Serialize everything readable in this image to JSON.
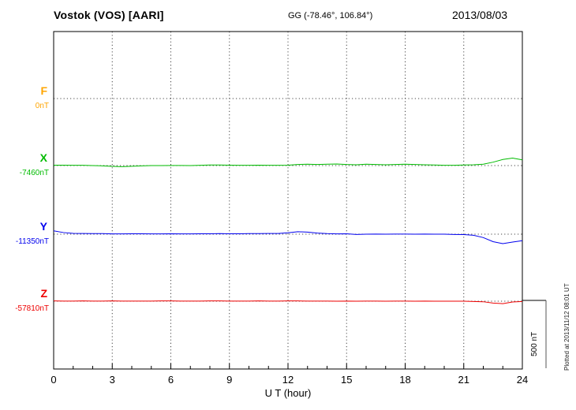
{
  "header": {
    "station_title": "Vostok (VOS)  [AARI]",
    "coords": "GG (-78.46°, 106.84°)",
    "date": "2013/08/03"
  },
  "axis": {
    "xlabel": "U T (hour)",
    "ticks": [
      0,
      3,
      6,
      9,
      12,
      15,
      18,
      21,
      24
    ]
  },
  "scale_bar": {
    "label": "500 nT",
    "value_nT": 500
  },
  "footer_note": "Plotted at 2013/11/12 08:01 UT",
  "chart_data": {
    "type": "line",
    "title": "Vostok (VOS) [AARI] magnetogram 2013/08/03",
    "xlabel": "U T (hour)",
    "xlim": [
      0,
      24
    ],
    "grid": "dotted",
    "scale_nT_per_div": 500,
    "x_hours": [
      0,
      0.5,
      1,
      1.5,
      2,
      2.5,
      3,
      3.5,
      4,
      4.5,
      5,
      5.5,
      6,
      6.5,
      7,
      7.5,
      8,
      8.5,
      9,
      9.5,
      10,
      10.5,
      11,
      11.5,
      12,
      12.5,
      13,
      13.5,
      14,
      14.5,
      15,
      15.5,
      16,
      16.5,
      17,
      17.5,
      18,
      18.5,
      19,
      19.5,
      20,
      20.5,
      21,
      21.5,
      22,
      22.5,
      23,
      23.5,
      24
    ],
    "series": [
      {
        "name": "F",
        "label": "F",
        "baseline_label": "0nT",
        "baseline_nT": 0,
        "color": "#FFA500",
        "offsets_nT": []
      },
      {
        "name": "X",
        "label": "X",
        "baseline_label": "-7460nT",
        "baseline_nT": -7460,
        "color": "#00BB00",
        "offsets_nT": [
          3,
          3,
          2,
          2,
          0,
          -2,
          -6,
          -8,
          -5,
          -2,
          0,
          0,
          1,
          1,
          0,
          2,
          4,
          4,
          3,
          2,
          2,
          3,
          2,
          2,
          3,
          8,
          10,
          8,
          10,
          12,
          8,
          6,
          10,
          8,
          6,
          8,
          10,
          8,
          6,
          4,
          2,
          2,
          4,
          6,
          10,
          25,
          45,
          55,
          42
        ]
      },
      {
        "name": "Y",
        "label": "Y",
        "baseline_label": "-11350nT",
        "baseline_nT": -11350,
        "color": "#0000EE",
        "offsets_nT": [
          25,
          12,
          6,
          5,
          4,
          4,
          2,
          2,
          3,
          3,
          2,
          2,
          3,
          2,
          2,
          3,
          3,
          4,
          3,
          3,
          4,
          4,
          5,
          5,
          10,
          18,
          15,
          8,
          4,
          2,
          3,
          -2,
          0,
          1,
          0,
          1,
          1,
          0,
          1,
          0,
          0,
          -2,
          -3,
          -8,
          -25,
          -55,
          -70,
          -58,
          -48
        ]
      },
      {
        "name": "Z",
        "label": "Z",
        "baseline_label": "-57810nT",
        "baseline_nT": -57810,
        "color": "#EE0000",
        "offsets_nT": [
          2,
          1,
          1,
          2,
          1,
          1,
          2,
          1,
          1,
          1,
          1,
          2,
          2,
          1,
          1,
          1,
          2,
          2,
          1,
          1,
          1,
          2,
          1,
          1,
          2,
          2,
          1,
          1,
          1,
          0,
          1,
          0,
          1,
          1,
          0,
          1,
          1,
          0,
          1,
          0,
          0,
          0,
          0,
          -2,
          -4,
          -14,
          -18,
          -6,
          -2
        ]
      }
    ]
  }
}
